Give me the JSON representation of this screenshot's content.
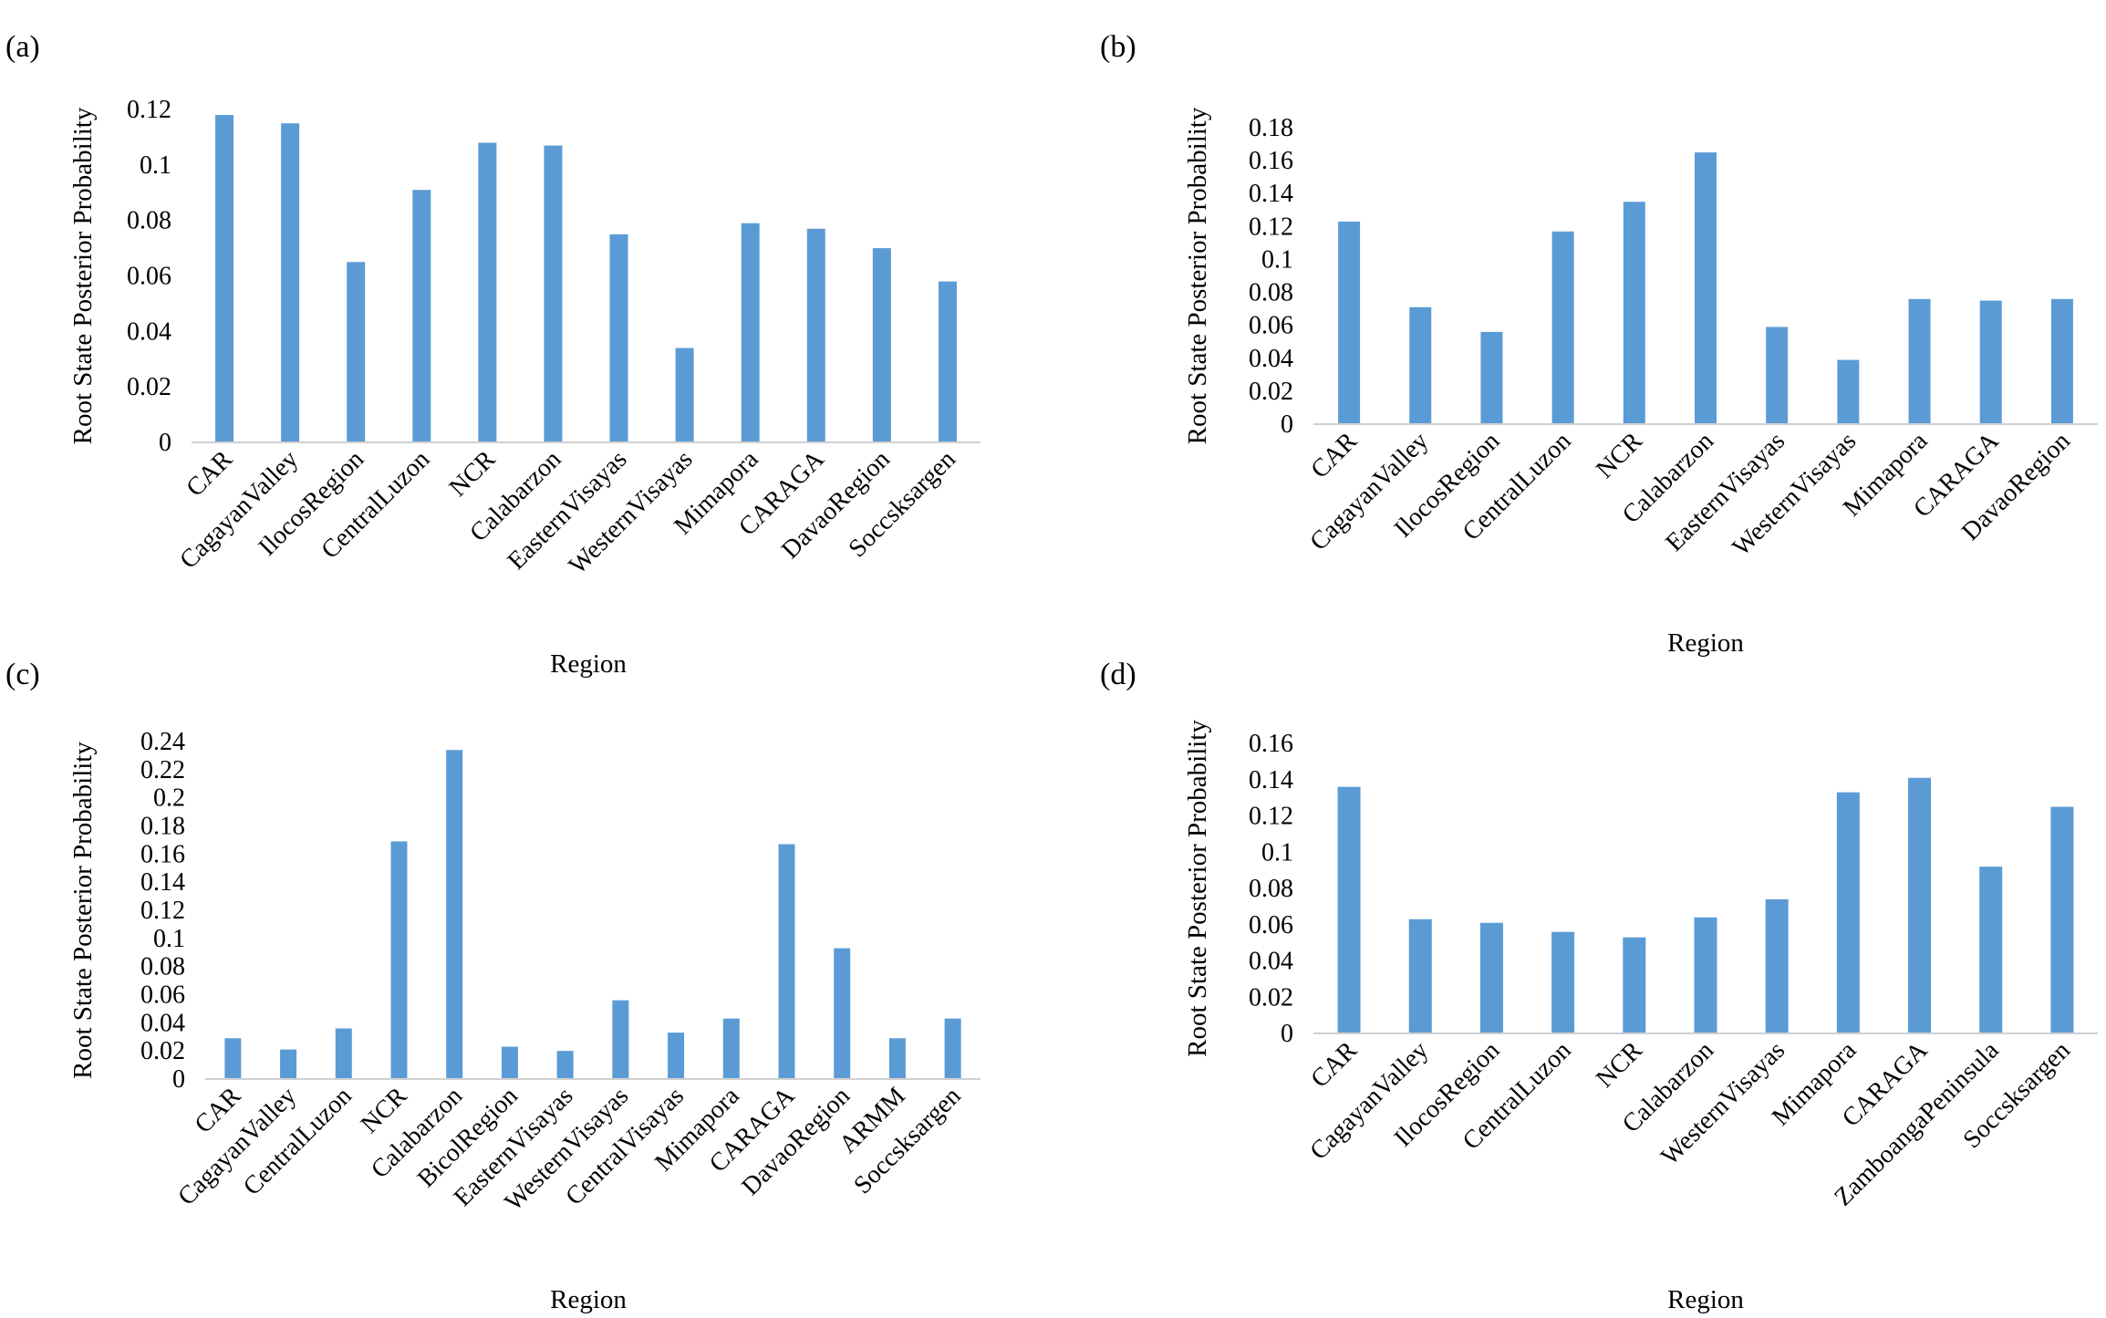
{
  "figure": {
    "panels": [
      {
        "label": "(a)"
      },
      {
        "label": "(b)"
      },
      {
        "label": "(c)"
      },
      {
        "label": "(d)"
      }
    ]
  },
  "chart_data": [
    {
      "type": "bar",
      "panel": "(a)",
      "xlabel": "Region",
      "ylabel": "Root State Posterior Probability",
      "ylim": [
        0,
        0.12
      ],
      "yticks": [
        "0",
        "0.02",
        "0.04",
        "0.06",
        "0.08",
        "0.1",
        "0.12"
      ],
      "grid": false,
      "color": "#5B9BD5",
      "categories": [
        "CAR",
        "CagayanValley",
        "IlocosRegion",
        "CentralLuzon",
        "NCR",
        "Calabarzon",
        "EasternVisayas",
        "WesternVisayas",
        "Mimapora",
        "CARAGA",
        "DavaoRegion",
        "Soccsksargen"
      ],
      "values": [
        0.118,
        0.115,
        0.065,
        0.091,
        0.108,
        0.107,
        0.075,
        0.034,
        0.079,
        0.077,
        0.07,
        0.058
      ]
    },
    {
      "type": "bar",
      "panel": "(b)",
      "xlabel": "Region",
      "ylabel": "Root State Posterior Probability",
      "ylim": [
        0,
        0.18
      ],
      "yticks": [
        "0",
        "0.02",
        "0.04",
        "0.06",
        "0.08",
        "0.1",
        "0.12",
        "0.14",
        "0.16",
        "0.18"
      ],
      "grid": false,
      "color": "#5B9BD5",
      "categories": [
        "CAR",
        "CagayanValley",
        "IlocosRegion",
        "CentralLuzon",
        "NCR",
        "Calabarzon",
        "EasternVisayas",
        "WesternVisayas",
        "Mimapora",
        "CARAGA",
        "DavaoRegion"
      ],
      "values": [
        0.123,
        0.071,
        0.056,
        0.117,
        0.135,
        0.165,
        0.059,
        0.039,
        0.076,
        0.075,
        0.076
      ]
    },
    {
      "type": "bar",
      "panel": "(c)",
      "xlabel": "Region",
      "ylabel": "Root State Posterior Probability",
      "ylim": [
        0,
        0.24
      ],
      "yticks": [
        "0",
        "0.02",
        "0.04",
        "0.06",
        "0.08",
        "0.1",
        "0.12",
        "0.14",
        "0.16",
        "0.18",
        "0.2",
        "0.22",
        "0.24"
      ],
      "grid": false,
      "color": "#5B9BD5",
      "categories": [
        "CAR",
        "CagayanValley",
        "CentralLuzon",
        "NCR",
        "Calabarzon",
        "BicolRegion",
        "EasternVisayas",
        "WesternVisayas",
        "CentralVisayas",
        "Mimapora",
        "CARAGA",
        "DavaoRegion",
        "ARMM",
        "Soccsksargen"
      ],
      "values": [
        0.029,
        0.021,
        0.036,
        0.169,
        0.234,
        0.023,
        0.02,
        0.056,
        0.033,
        0.043,
        0.167,
        0.093,
        0.029,
        0.043
      ]
    },
    {
      "type": "bar",
      "panel": "(d)",
      "xlabel": "Region",
      "ylabel": "Root State Posterior Probability",
      "ylim": [
        0,
        0.16
      ],
      "yticks": [
        "0",
        "0.02",
        "0.04",
        "0.06",
        "0.08",
        "0.1",
        "0.12",
        "0.14",
        "0.16"
      ],
      "grid": false,
      "color": "#5B9BD5",
      "categories": [
        "CAR",
        "CagayanValley",
        "IlocosRegion",
        "CentralLuzon",
        "NCR",
        "Calabarzon",
        "WesternVisayas",
        "Mimapora",
        "CARAGA",
        "ZamboangaPeninsula",
        "Soccsksargen"
      ],
      "values": [
        0.136,
        0.063,
        0.061,
        0.056,
        0.053,
        0.064,
        0.074,
        0.133,
        0.141,
        0.092,
        0.125
      ]
    }
  ]
}
